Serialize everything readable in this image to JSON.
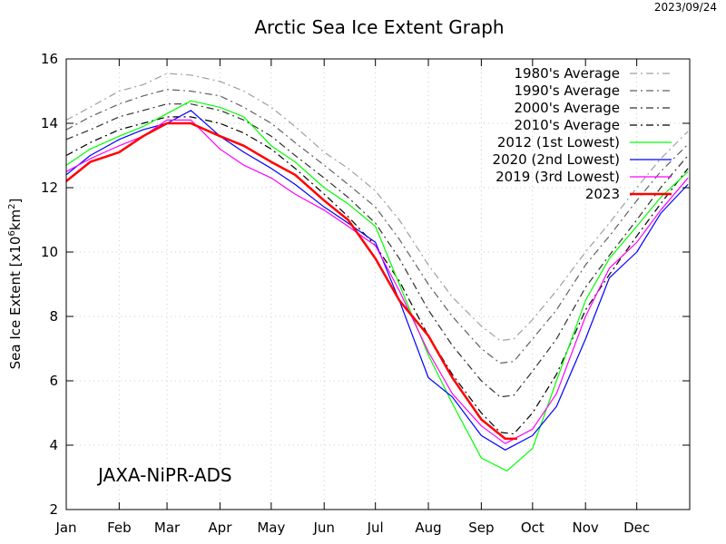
{
  "date_stamp": "2023/09/24",
  "chart_data": {
    "type": "line",
    "title": "Arctic Sea Ice Extent Graph",
    "ylabel": "Sea Ice Extent [x10^6km^2]",
    "ylabel_parts": {
      "a": "Sea Ice Extent [x10",
      "b": "6",
      "c": "km",
      "d": "2",
      "e": "]"
    },
    "annotation": "JAXA-NiPR-ADS",
    "ylim": [
      2,
      16
    ],
    "yticks": [
      2,
      4,
      6,
      8,
      10,
      12,
      14,
      16
    ],
    "xticks": [
      "Jan",
      "Feb",
      "Mar",
      "Apr",
      "May",
      "Jun",
      "Jul",
      "Aug",
      "Sep",
      "Oct",
      "Nov",
      "Dec"
    ],
    "grid": true,
    "legend_position": "top-right",
    "series": [
      {
        "name": "1980's Average",
        "color": "#a0a0a0",
        "style": "dash-dot",
        "x": [
          "01-01",
          "01-15",
          "02-01",
          "02-15",
          "03-01",
          "03-15",
          "04-01",
          "04-15",
          "05-01",
          "05-15",
          "06-01",
          "06-15",
          "07-01",
          "07-15",
          "08-01",
          "08-15",
          "09-01",
          "09-12",
          "09-20",
          "10-01",
          "10-15",
          "11-01",
          "11-15",
          "12-01",
          "12-15",
          "12-31"
        ],
        "y": [
          14.1,
          14.5,
          15.0,
          15.2,
          15.55,
          15.5,
          15.3,
          15.0,
          14.5,
          13.9,
          13.1,
          12.6,
          11.9,
          11.0,
          9.6,
          8.6,
          7.7,
          7.25,
          7.3,
          7.9,
          8.8,
          10.0,
          10.9,
          12.0,
          12.9,
          13.75
        ]
      },
      {
        "name": "1990's Average",
        "color": "#606060",
        "style": "dash-dot",
        "x": [
          "01-01",
          "01-15",
          "02-01",
          "02-15",
          "03-01",
          "03-15",
          "04-01",
          "04-15",
          "05-01",
          "05-15",
          "06-01",
          "06-15",
          "07-01",
          "07-15",
          "08-01",
          "08-15",
          "09-01",
          "09-12",
          "09-20",
          "10-01",
          "10-15",
          "11-01",
          "11-15",
          "12-01",
          "12-15",
          "12-31"
        ],
        "y": [
          13.8,
          14.2,
          14.6,
          14.85,
          15.05,
          15.0,
          14.85,
          14.5,
          14.0,
          13.4,
          12.7,
          12.1,
          11.4,
          10.4,
          9.0,
          8.0,
          7.0,
          6.55,
          6.6,
          7.3,
          8.2,
          9.6,
          10.5,
          11.6,
          12.5,
          13.35
        ]
      },
      {
        "name": "2000's Average",
        "color": "#303030",
        "style": "dash-dot",
        "x": [
          "01-01",
          "01-15",
          "02-01",
          "02-15",
          "03-01",
          "03-15",
          "04-01",
          "04-15",
          "05-01",
          "05-15",
          "06-01",
          "06-15",
          "07-01",
          "07-15",
          "08-01",
          "08-15",
          "09-01",
          "09-12",
          "09-20",
          "10-01",
          "10-15",
          "11-01",
          "11-15",
          "12-01",
          "12-15",
          "12-31"
        ],
        "y": [
          13.5,
          13.8,
          14.2,
          14.4,
          14.6,
          14.6,
          14.4,
          14.1,
          13.6,
          13.0,
          12.3,
          11.7,
          10.9,
          9.8,
          8.2,
          7.1,
          6.0,
          5.5,
          5.55,
          6.3,
          7.3,
          8.9,
          9.9,
          11.0,
          12.0,
          13.0
        ]
      },
      {
        "name": "2010's Average",
        "color": "#000000",
        "style": "dash-dot",
        "x": [
          "01-01",
          "01-15",
          "02-01",
          "02-15",
          "03-01",
          "03-15",
          "04-01",
          "04-15",
          "05-01",
          "05-15",
          "06-01",
          "06-15",
          "07-01",
          "07-15",
          "08-01",
          "08-15",
          "09-01",
          "09-12",
          "09-20",
          "10-01",
          "10-15",
          "11-01",
          "11-15",
          "12-01",
          "12-15",
          "12-31"
        ],
        "y": [
          13.0,
          13.4,
          13.8,
          14.0,
          14.2,
          14.2,
          14.0,
          13.7,
          13.2,
          12.6,
          11.8,
          11.1,
          10.2,
          9.1,
          7.4,
          6.2,
          5.0,
          4.4,
          4.35,
          5.0,
          6.2,
          8.2,
          9.3,
          10.5,
          11.5,
          12.6
        ]
      },
      {
        "name": "2012 (1st Lowest)",
        "color": "#00ff00",
        "style": "solid",
        "x": [
          "01-01",
          "01-15",
          "02-01",
          "02-15",
          "03-01",
          "03-15",
          "04-01",
          "04-15",
          "05-01",
          "05-15",
          "06-01",
          "06-15",
          "07-01",
          "07-15",
          "08-01",
          "08-15",
          "09-01",
          "09-16",
          "10-01",
          "10-15",
          "11-01",
          "11-15",
          "12-01",
          "12-15",
          "12-31"
        ],
        "y": [
          12.7,
          13.2,
          13.6,
          13.9,
          14.3,
          14.7,
          14.5,
          14.2,
          13.3,
          12.8,
          12.0,
          11.5,
          10.8,
          9.0,
          6.8,
          5.3,
          3.6,
          3.2,
          3.9,
          6.0,
          8.5,
          9.8,
          10.8,
          11.7,
          12.5
        ]
      },
      {
        "name": "2020 (2nd Lowest)",
        "color": "#0000ff",
        "style": "solid",
        "x": [
          "01-01",
          "01-15",
          "02-01",
          "02-15",
          "03-01",
          "03-15",
          "04-01",
          "04-15",
          "05-01",
          "05-15",
          "06-01",
          "06-15",
          "07-01",
          "07-15",
          "08-01",
          "08-15",
          "09-01",
          "09-15",
          "10-01",
          "10-15",
          "11-01",
          "11-15",
          "12-01",
          "12-15",
          "12-31"
        ],
        "y": [
          12.4,
          13.0,
          13.5,
          13.8,
          14.0,
          14.4,
          13.6,
          13.1,
          12.6,
          12.1,
          11.4,
          10.9,
          10.3,
          8.5,
          6.1,
          5.5,
          4.3,
          3.85,
          4.3,
          5.2,
          7.3,
          9.2,
          10.0,
          11.2,
          12.1
        ]
      },
      {
        "name": "2019 (3rd Lowest)",
        "color": "#ff00ff",
        "style": "solid",
        "x": [
          "01-01",
          "01-15",
          "02-01",
          "02-15",
          "03-01",
          "03-15",
          "04-01",
          "04-15",
          "05-01",
          "05-15",
          "06-01",
          "06-15",
          "07-01",
          "07-15",
          "08-01",
          "08-15",
          "09-01",
          "09-15",
          "10-01",
          "10-15",
          "11-01",
          "11-15",
          "12-01",
          "12-15",
          "12-31"
        ],
        "y": [
          12.5,
          12.9,
          13.3,
          13.6,
          14.1,
          14.1,
          13.2,
          12.7,
          12.3,
          11.8,
          11.3,
          10.8,
          10.2,
          8.8,
          6.9,
          5.6,
          4.6,
          4.05,
          4.5,
          5.6,
          8.0,
          9.5,
          10.3,
          11.3,
          12.3
        ]
      },
      {
        "name": "2023",
        "color": "#ff0000",
        "style": "bold",
        "x": [
          "01-01",
          "01-15",
          "02-01",
          "02-15",
          "03-01",
          "03-15",
          "04-01",
          "04-15",
          "05-01",
          "05-15",
          "06-01",
          "06-15",
          "07-01",
          "07-15",
          "08-01",
          "08-15",
          "09-01",
          "09-15",
          "09-22"
        ],
        "y": [
          12.2,
          12.8,
          13.1,
          13.6,
          14.0,
          14.0,
          13.6,
          13.3,
          12.8,
          12.4,
          11.6,
          11.0,
          9.8,
          8.5,
          7.4,
          6.1,
          4.8,
          4.2,
          4.2
        ]
      }
    ]
  }
}
